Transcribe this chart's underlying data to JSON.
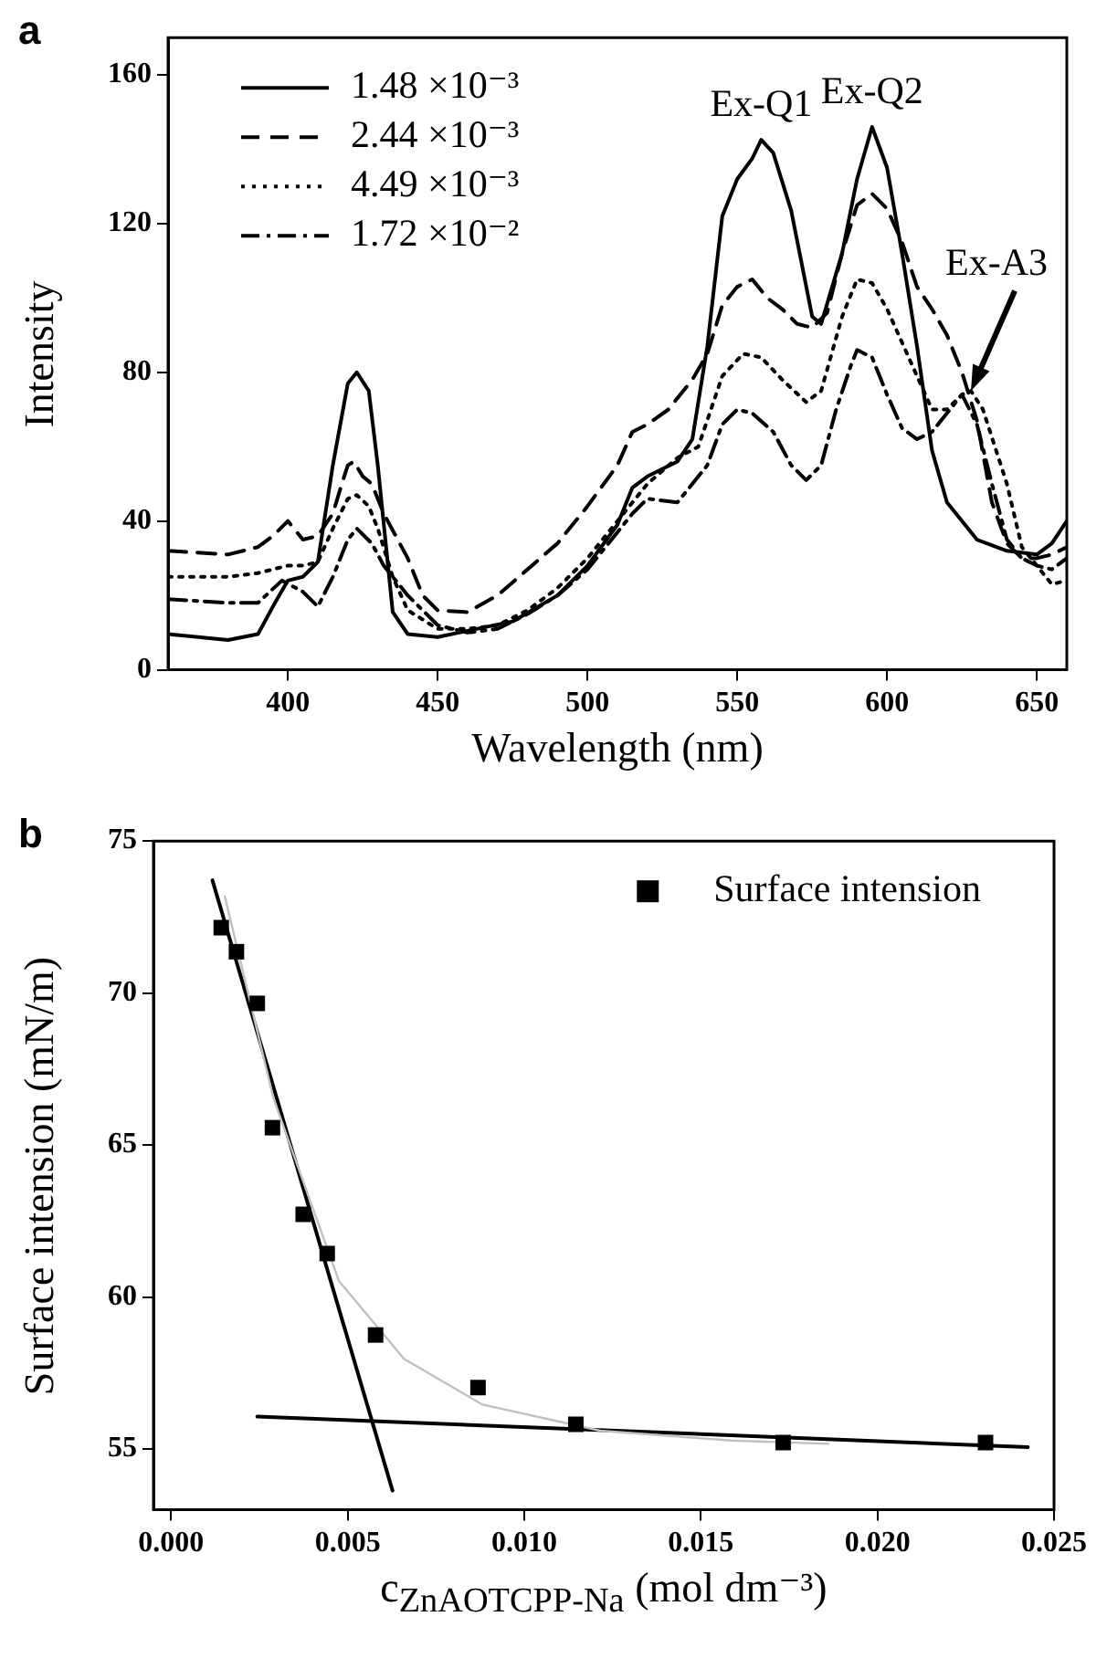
{
  "chart_data": [
    {
      "type": "line",
      "title": "a",
      "xlabel": "Wavelength (nm)",
      "ylabel": "Intensity",
      "xlim": [
        360,
        660
      ],
      "ylim": [
        0,
        170
      ],
      "xticks": [
        400,
        450,
        500,
        550,
        600,
        650
      ],
      "yticks": [
        0,
        40,
        80,
        120,
        160
      ],
      "legend": "top left",
      "grid": false,
      "annotations": [
        {
          "text": "Ex-Q1",
          "x": 558,
          "y": 142.5
        },
        {
          "text": "Ex-Q2",
          "x": 595,
          "y": 146
        },
        {
          "text": "Ex-A3",
          "x": 628,
          "y": 75
        }
      ],
      "series": [
        {
          "name": "1.48 ×10⁻³",
          "color": "#000000",
          "line_style": "solid",
          "x": [
            360,
            380,
            390,
            395,
            400,
            405,
            410,
            415,
            420,
            423,
            427,
            430,
            435,
            440,
            450,
            460,
            475,
            490,
            500,
            510,
            515,
            520,
            530,
            535,
            540,
            545,
            550,
            555,
            558,
            562,
            568,
            575,
            578,
            585,
            590,
            595,
            600,
            605,
            610,
            615,
            620,
            630,
            640,
            650,
            655,
            660
          ],
          "values": [
            9.6,
            8,
            9.6,
            17,
            24,
            25,
            29,
            55,
            77,
            80,
            75,
            55,
            15.5,
            9.6,
            8.8,
            10.5,
            13,
            20,
            28,
            39,
            49,
            52,
            56,
            62,
            87,
            122,
            132,
            137.5,
            142.5,
            139,
            123.5,
            95,
            93,
            112,
            132,
            146,
            135,
            112,
            87,
            59,
            45,
            35,
            32,
            31,
            34,
            40
          ]
        },
        {
          "name": "2.44 ×10⁻³",
          "color": "#000000",
          "line_style": "dashed",
          "x": [
            360,
            380,
            390,
            395,
            400,
            405,
            410,
            415,
            418,
            420,
            422,
            425,
            428,
            432,
            440,
            445,
            450,
            460,
            470,
            480,
            490,
            500,
            510,
            515,
            520,
            527,
            535,
            540,
            545,
            550,
            555,
            560,
            565,
            570,
            575,
            580,
            585,
            590,
            595,
            600,
            605,
            610,
            615,
            620,
            625,
            630,
            635,
            640,
            645,
            650,
            655,
            660
          ],
          "values": [
            32,
            31,
            33,
            36,
            40,
            35,
            36,
            42,
            50,
            55,
            56,
            52,
            50,
            42,
            30,
            20,
            16,
            15.5,
            20,
            27,
            34,
            44,
            55,
            64,
            66,
            70,
            78,
            85,
            98,
            103,
            105,
            100,
            97,
            93,
            92,
            96,
            112,
            125,
            128,
            124,
            115,
            103,
            97,
            90,
            80,
            67,
            45,
            34,
            30,
            30,
            31,
            33
          ]
        },
        {
          "name": "4.49 ×10⁻³",
          "color": "#000000",
          "line_style": "dotted",
          "x": [
            360,
            380,
            390,
            400,
            405,
            410,
            415,
            420,
            423,
            427,
            430,
            435,
            440,
            450,
            460,
            470,
            480,
            490,
            500,
            510,
            520,
            530,
            537,
            545,
            552,
            558,
            565,
            573,
            578,
            585,
            590,
            595,
            600,
            605,
            610,
            615,
            620,
            625,
            628,
            632,
            640,
            645,
            650,
            655,
            660
          ],
          "values": [
            25,
            25,
            26,
            28,
            28,
            29,
            38,
            46,
            47,
            44,
            38,
            25,
            16,
            11,
            11,
            12,
            16,
            22,
            30,
            40,
            50,
            57,
            60,
            79,
            85,
            84,
            78,
            72,
            75,
            95,
            105,
            104,
            97,
            88,
            79,
            70,
            70,
            74,
            75,
            70,
            50,
            33,
            28,
            23,
            24
          ]
        },
        {
          "name": "1.72 ×10⁻²",
          "color": "#000000",
          "line_style": "dashdot",
          "x": [
            360,
            380,
            390,
            398,
            405,
            410,
            415,
            420,
            423,
            428,
            432,
            440,
            450,
            460,
            470,
            480,
            490,
            500,
            510,
            515,
            520,
            530,
            540,
            545,
            550,
            555,
            562,
            568,
            573,
            578,
            583,
            588,
            590,
            595,
            600,
            605,
            610,
            615,
            620,
            625,
            630,
            635,
            640,
            645,
            650,
            655,
            660
          ],
          "values": [
            19,
            18,
            18,
            24,
            21,
            17,
            25,
            35,
            38,
            34,
            28,
            20,
            12,
            10,
            11,
            15,
            20,
            27,
            37,
            42,
            46,
            45,
            55,
            66,
            70,
            69,
            64,
            55,
            51,
            55,
            70,
            82,
            86,
            84,
            74,
            65,
            62,
            64,
            69,
            74,
            66,
            50,
            35,
            30,
            28,
            27,
            30
          ]
        }
      ]
    },
    {
      "type": "scatter",
      "title": "b",
      "xlabel": "c$_{ZnAOTCPP-Na}$  (mol dm⁻³)",
      "ylabel": "Surface intension  (mN/m)",
      "xlim": [
        -0.0005,
        0.025
      ],
      "ylim": [
        53,
        75
      ],
      "xticks": [
        {
          "value": 0,
          "label": "0.000"
        },
        {
          "value": 0.005,
          "label": "0.005"
        },
        {
          "value": 0.01,
          "label": "0.010"
        },
        {
          "value": 0.015,
          "label": "0.015"
        },
        {
          "value": 0.02,
          "label": "0.020"
        },
        {
          "value": 0.025,
          "label": "0.025"
        }
      ],
      "yticks": [
        55,
        60,
        65,
        70,
        75
      ],
      "legend": "top right",
      "grid": false,
      "series": [
        {
          "name": "Surface intension",
          "marker": "square",
          "color": "#000000",
          "x": [
            0.00142,
            0.00185,
            0.00244,
            0.00287,
            0.00374,
            0.00442,
            0.00579,
            0.00869,
            0.01146,
            0.01733,
            0.02306
          ],
          "values": [
            72.15,
            71.36,
            69.66,
            65.57,
            62.72,
            61.43,
            58.75,
            57.02,
            55.81,
            55.21,
            55.21
          ]
        },
        {
          "type": "line",
          "color": "#c0c0c0",
          "x": [
            0.00152,
            0.0029,
            0.00475,
            0.0066,
            0.00882,
            0.01215,
            0.01585,
            0.01862
          ],
          "values": [
            73.18,
            66.53,
            60.53,
            57.96,
            56.46,
            55.6,
            55.28,
            55.17
          ]
        },
        {
          "type": "line",
          "color": "#000000",
          "x": [
            0.00117,
            0.00627
          ],
          "values": [
            73.71,
            53.63
          ]
        },
        {
          "type": "line",
          "color": "#000000",
          "x": [
            0.00244,
            0.02426
          ],
          "values": [
            56.07,
            55.06
          ]
        }
      ]
    }
  ]
}
